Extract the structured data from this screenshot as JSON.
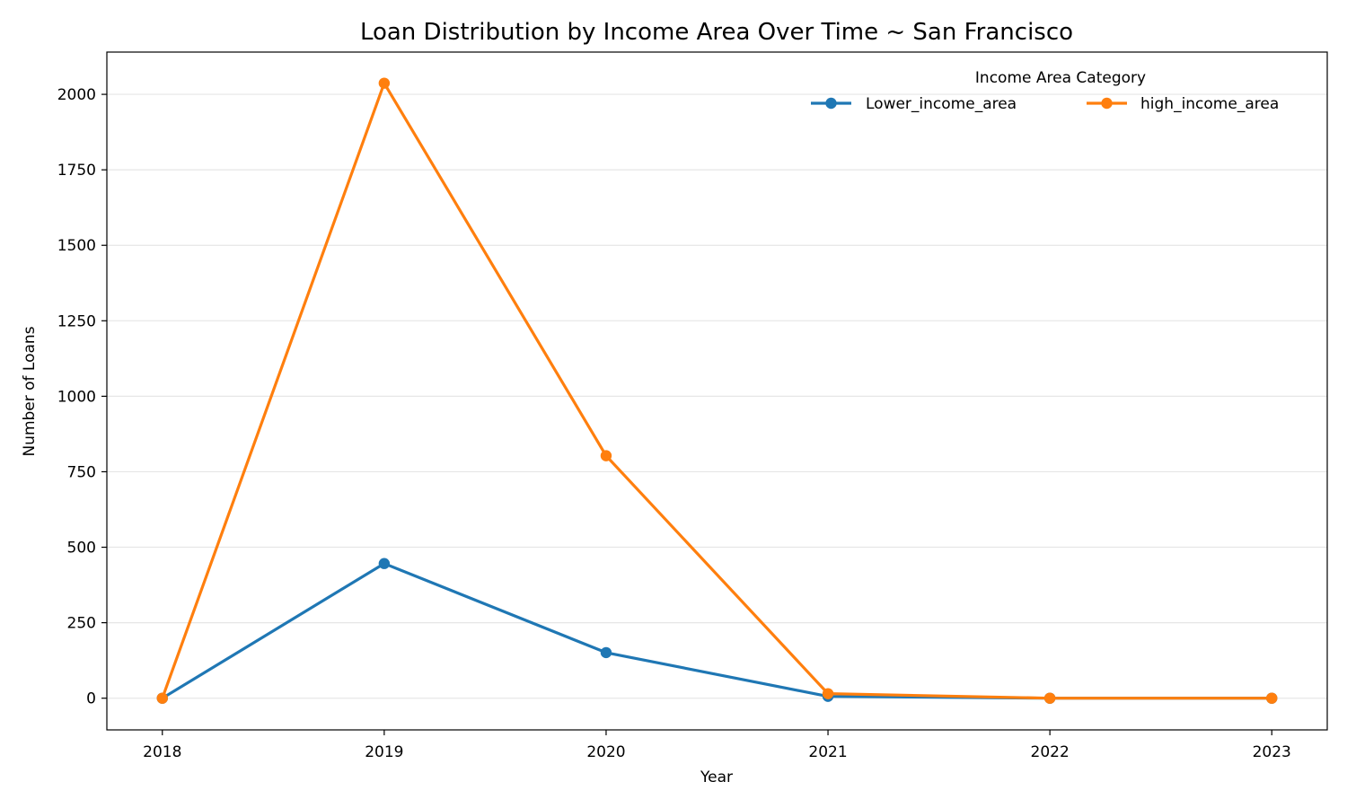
{
  "chart_data": {
    "type": "line",
    "title": "Loan Distribution by Income Area Over Time ~ San Francisco",
    "xlabel": "Year",
    "ylabel": "Number of Loans",
    "x": [
      2018,
      2019,
      2020,
      2021,
      2022,
      2023
    ],
    "x_tick_labels": [
      "2018",
      "2019",
      "2020",
      "2021",
      "2022",
      "2023"
    ],
    "xlim": [
      2017.75,
      2023.25
    ],
    "ylim": [
      -105,
      2140
    ],
    "y_ticks": [
      0,
      250,
      500,
      750,
      1000,
      1250,
      1500,
      1750,
      2000
    ],
    "y_tick_labels": [
      "0",
      "250",
      "500",
      "750",
      "1000",
      "1250",
      "1500",
      "1750",
      "2000"
    ],
    "grid": "horizontal",
    "legend": {
      "title": "Income Area Category",
      "placement": "top-right"
    },
    "series": [
      {
        "name": "Lower_income_area",
        "color": "#1f77b4",
        "values": [
          0,
          446,
          151,
          6,
          0,
          0
        ]
      },
      {
        "name": "high_income_area",
        "color": "#ff7f0e",
        "values": [
          0,
          2037,
          803,
          15,
          0,
          0
        ]
      }
    ]
  }
}
